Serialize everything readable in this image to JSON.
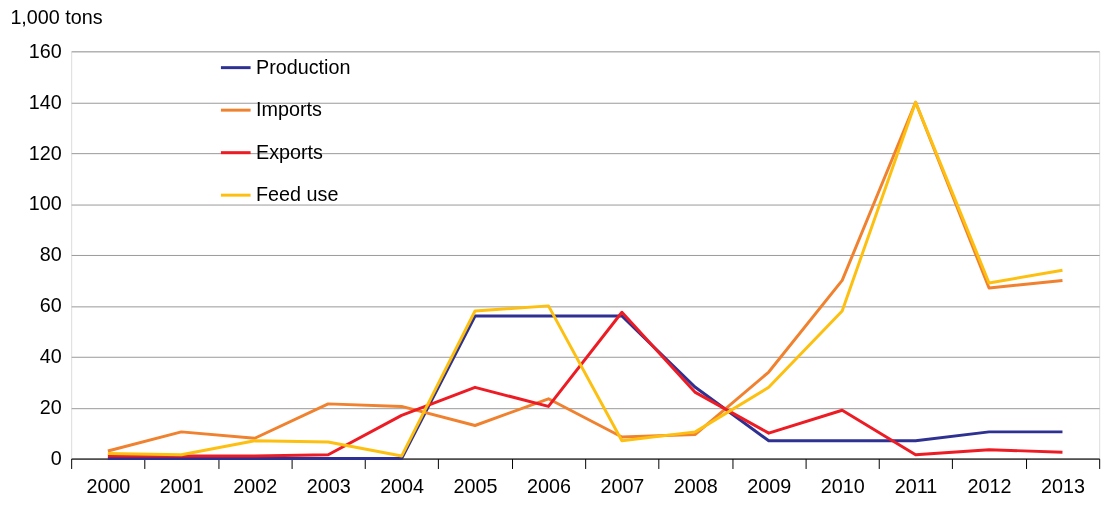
{
  "chart_data": {
    "type": "line",
    "ylabel": "1,000 tons",
    "categories": [
      "2000",
      "2001",
      "2002",
      "2003",
      "2004",
      "2005",
      "2006",
      "2007",
      "2008",
      "2009",
      "2010",
      "2011",
      "2012",
      "2013"
    ],
    "series": [
      {
        "name": "Production",
        "color": "#2e3192",
        "values": [
          0,
          0,
          0,
          0,
          0,
          56,
          56,
          56,
          28,
          7,
          7,
          7,
          10.5,
          10.5
        ]
      },
      {
        "name": "Imports",
        "color": "#f0812e",
        "values": [
          3,
          10.5,
          8,
          21.5,
          20.5,
          13,
          23.5,
          8.5,
          9.5,
          34,
          70,
          140,
          67,
          70
        ]
      },
      {
        "name": "Exports",
        "color": "#ed1c24",
        "values": [
          1,
          1,
          1,
          1.5,
          17,
          28,
          20.5,
          57.5,
          26,
          10,
          19,
          1.5,
          3.5,
          2.5
        ]
      },
      {
        "name": "Feed use",
        "color": "#fdc010",
        "values": [
          2,
          1.5,
          7,
          6.5,
          1,
          58,
          60,
          7,
          10.5,
          28,
          58,
          140,
          69,
          74
        ]
      }
    ],
    "ylim": [
      0,
      160
    ],
    "yticks": [
      0,
      20,
      40,
      60,
      80,
      100,
      120,
      140,
      160
    ],
    "grid": "y",
    "legend": "top left",
    "marker": "none",
    "line_style": "solid"
  }
}
